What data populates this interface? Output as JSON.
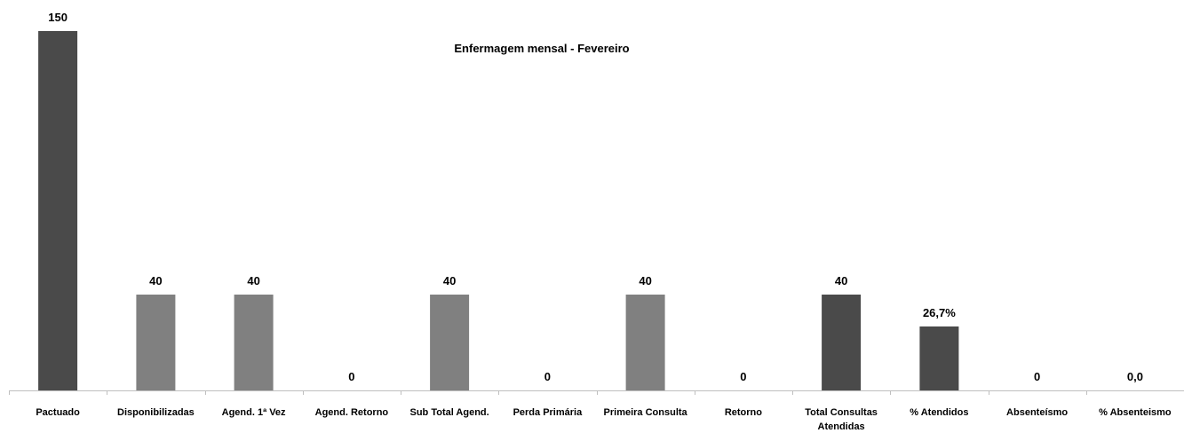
{
  "chart_data": {
    "type": "bar",
    "title": "Enfermagem mensal - Fevereiro",
    "xlabel": "",
    "ylabel": "",
    "ylim": [
      0,
      150
    ],
    "grid": false,
    "legend": "none",
    "categories": [
      "Pactuado",
      "Disponibilizadas",
      "Agend. 1ª Vez",
      "Agend. Retorno",
      "Sub Total Agend.",
      "Perda Primária",
      "Primeira Consulta",
      "Retorno",
      "Total Consultas Atendidas",
      "% Atendidos",
      "Absenteísmo",
      "% Absenteismo"
    ],
    "values": [
      150,
      40,
      40,
      0,
      40,
      0,
      40,
      0,
      40,
      26.7,
      0,
      0.0
    ],
    "data_labels": [
      "150",
      "40",
      "40",
      "0",
      "40",
      "0",
      "40",
      "0",
      "40",
      "26,7%",
      "0",
      "0,0"
    ],
    "colors": {
      "dark": "#4a4a4a",
      "light": "#808080",
      "axis": "#bfbfbf"
    },
    "bar_colors": [
      "dark",
      "light",
      "light",
      "light",
      "light",
      "light",
      "light",
      "dark",
      "dark",
      "dark",
      "dark",
      "dark"
    ]
  }
}
